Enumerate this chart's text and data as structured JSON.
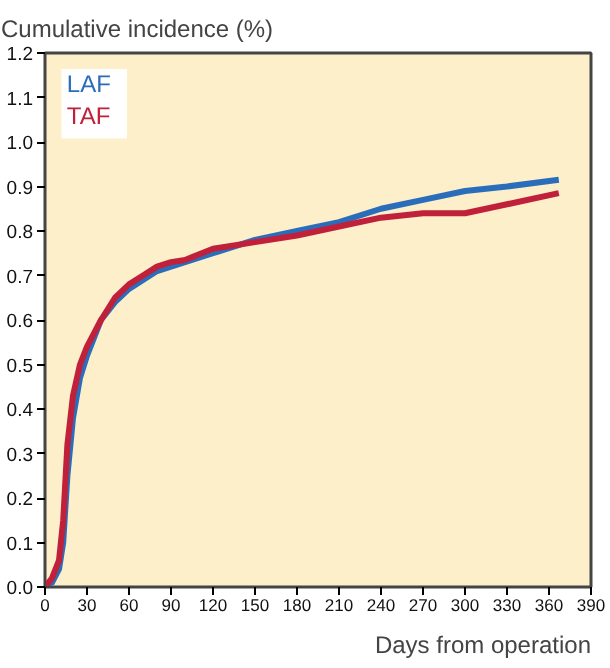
{
  "chart_data": {
    "type": "line",
    "ylabel": "Cumulative incidence (%)",
    "xlabel": "Days from operation",
    "xlim": [
      0,
      390
    ],
    "xticks": [
      0,
      30,
      60,
      90,
      120,
      150,
      180,
      210,
      240,
      270,
      300,
      330,
      360,
      390
    ],
    "ylim": [
      0,
      1.2
    ],
    "yticks": [
      {
        "value": 0,
        "label": "0.0"
      },
      0.1,
      0.2,
      0.3,
      0.4,
      0.5,
      0.6,
      0.7,
      0.8,
      0.9,
      {
        "value": 1,
        "label": "1.0"
      },
      1.1,
      1.2
    ],
    "grid": false,
    "legend": "top left",
    "marker": "none",
    "line_style": "solid",
    "x": [
      0,
      5,
      10,
      13,
      16,
      20,
      25,
      30,
      40,
      50,
      60,
      70,
      80,
      90,
      100,
      120,
      150,
      180,
      210,
      240,
      270,
      300,
      330,
      367
    ],
    "series": [
      {
        "name": "LAF",
        "color": "#2a6ebb",
        "values": [
          0,
          0.01,
          0.04,
          0.1,
          0.25,
          0.38,
          0.47,
          0.52,
          0.6,
          0.64,
          0.67,
          0.69,
          0.71,
          0.72,
          0.73,
          0.75,
          0.78,
          0.8,
          0.82,
          0.85,
          0.87,
          0.89,
          0.9,
          0.915
        ]
      },
      {
        "name": "TAF",
        "color": "#c0203a",
        "values": [
          0,
          0.02,
          0.06,
          0.15,
          0.32,
          0.43,
          0.5,
          0.54,
          0.6,
          0.65,
          0.68,
          0.7,
          0.72,
          0.73,
          0.735,
          0.76,
          0.775,
          0.79,
          0.81,
          0.83,
          0.84,
          0.84,
          0.86,
          0.885
        ]
      }
    ]
  }
}
